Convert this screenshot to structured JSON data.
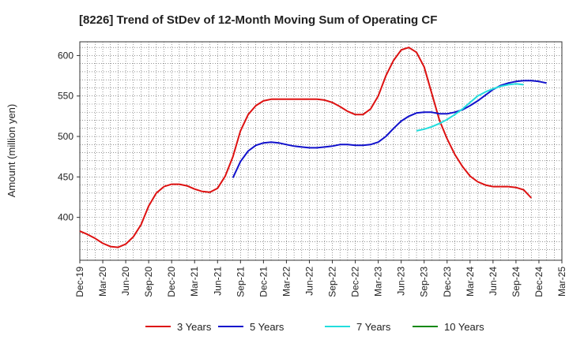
{
  "chart_data": {
    "type": "line",
    "title": "[8226]  Trend of StDev of 12-Month Moving Sum of Operating CF",
    "xlabel": "",
    "ylabel": "Amount (million yen)",
    "ylim": [
      347,
      617
    ],
    "yticks": [
      400,
      450,
      500,
      550,
      600
    ],
    "x_range": [
      "2019-12",
      "2025-03"
    ],
    "x_ticks": [
      "Dec-19",
      "Mar-20",
      "Jun-20",
      "Sep-20",
      "Dec-20",
      "Mar-21",
      "Jun-21",
      "Sep-21",
      "Dec-21",
      "Mar-22",
      "Jun-22",
      "Sep-22",
      "Dec-22",
      "Mar-23",
      "Jun-23",
      "Sep-23",
      "Dec-23",
      "Mar-24",
      "Jun-24",
      "Sep-24",
      "Dec-24",
      "Mar-25"
    ],
    "grid": true,
    "legend_position": "bottom",
    "series": [
      {
        "name": "3 Years",
        "color": "#dd1111",
        "start": "2019-12",
        "values": [
          383,
          379,
          374,
          368,
          364,
          363,
          367,
          376,
          391,
          414,
          430,
          438,
          441,
          441,
          439,
          435,
          432,
          431,
          436,
          451,
          475,
          507,
          527,
          538,
          544,
          546,
          546,
          546,
          546,
          546,
          546,
          546,
          545,
          542,
          537,
          531,
          527,
          527,
          534,
          550,
          575,
          594,
          607,
          610,
          604,
          586,
          553,
          520,
          497,
          478,
          463,
          451,
          444,
          440,
          438,
          438,
          438,
          437,
          434,
          424
        ]
      },
      {
        "name": "5 Years",
        "color": "#1111cc",
        "start": "2021-08",
        "values": [
          449,
          469,
          482,
          489,
          492,
          493,
          492,
          490,
          488,
          487,
          486,
          486,
          487,
          488,
          490,
          490,
          489,
          489,
          490,
          493,
          500,
          510,
          519,
          525,
          529,
          530,
          530,
          528,
          528,
          530,
          533,
          538,
          544,
          551,
          558,
          563,
          566,
          568,
          569,
          569,
          568,
          566
        ]
      },
      {
        "name": "7 Years",
        "color": "#22dddd",
        "start": "2023-08",
        "values": [
          507,
          509,
          512,
          516,
          521,
          527,
          534,
          542,
          550,
          555,
          559,
          562,
          564,
          565,
          564
        ]
      },
      {
        "name": "10 Years",
        "color": "#118811",
        "start": "2024-09",
        "values": []
      }
    ]
  }
}
